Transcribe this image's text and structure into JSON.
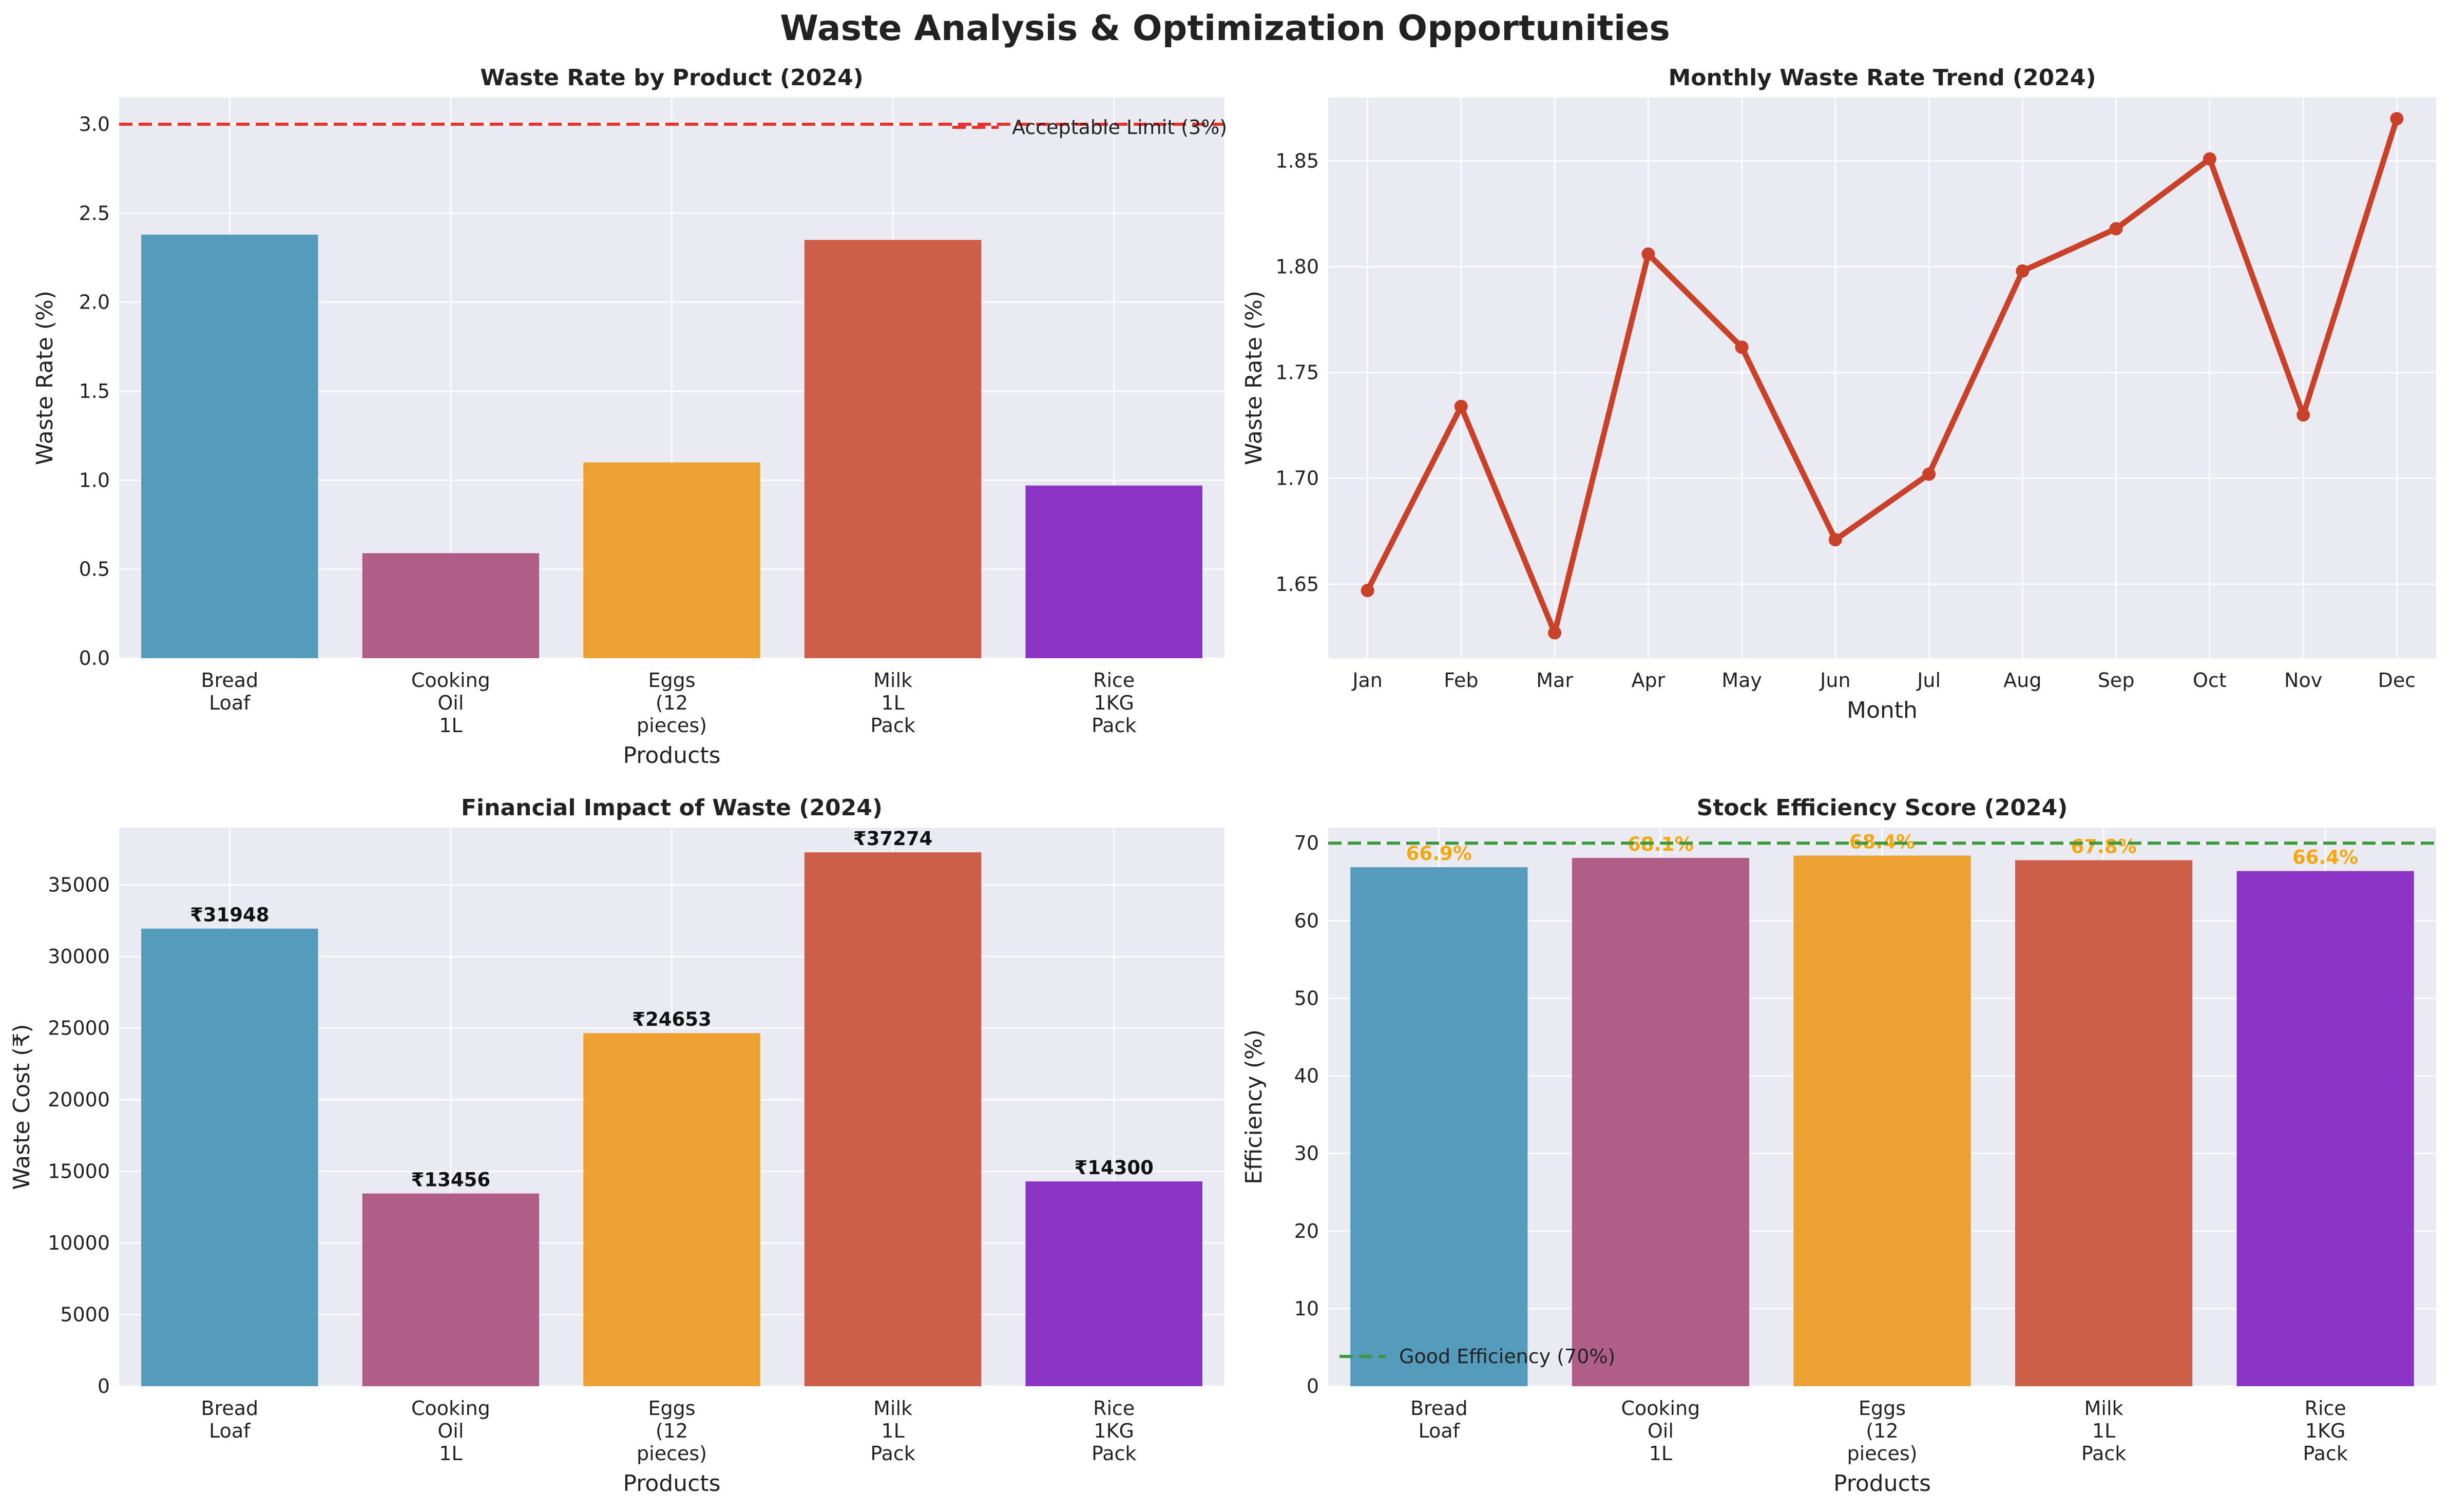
{
  "suptitle": "Waste Analysis & Optimization Opportunities",
  "chart_data": [
    {
      "type": "bar",
      "title": "Waste Rate by Product (2024)",
      "xlabel": "Products",
      "ylabel": "Waste Rate (%)",
      "categories": [
        [
          "Bread",
          "Loaf"
        ],
        [
          "Cooking",
          "Oil",
          "1L"
        ],
        [
          "Eggs",
          "(12",
          "pieces)"
        ],
        [
          "Milk",
          "1L",
          "Pack"
        ],
        [
          "Rice",
          "1KG",
          "Pack"
        ]
      ],
      "values": [
        2.38,
        0.59,
        1.1,
        2.35,
        0.97
      ],
      "colors": [
        "#559bbb",
        "#b05e88",
        "#eea133",
        "#cd5f48",
        "#8a33c4"
      ],
      "ylim": [
        0,
        3.15
      ],
      "yticks": [
        0.0,
        0.5,
        1.0,
        1.5,
        2.0,
        2.5,
        3.0
      ],
      "ytick_labels": [
        "0.0",
        "0.5",
        "1.0",
        "1.5",
        "2.0",
        "2.5",
        "3.0"
      ],
      "reference_line": {
        "value": 3.0,
        "label": "Acceptable Limit (3%)",
        "color": "#e8332d",
        "style": "dashed"
      },
      "legend_position": "upper right",
      "grid": true
    },
    {
      "type": "line",
      "title": "Monthly Waste Rate Trend (2024)",
      "xlabel": "Month",
      "ylabel": "Waste Rate (%)",
      "categories": [
        "Jan",
        "Feb",
        "Mar",
        "Apr",
        "May",
        "Jun",
        "Jul",
        "Aug",
        "Sep",
        "Oct",
        "Nov",
        "Dec"
      ],
      "values": [
        1.647,
        1.734,
        1.627,
        1.806,
        1.762,
        1.671,
        1.702,
        1.798,
        1.818,
        1.851,
        1.73,
        1.87
      ],
      "color": "#c84128",
      "ylim": [
        1.615,
        1.88
      ],
      "yticks": [
        1.65,
        1.7,
        1.75,
        1.8,
        1.85
      ],
      "ytick_labels": [
        "1.65",
        "1.70",
        "1.75",
        "1.80",
        "1.85"
      ],
      "grid": true
    },
    {
      "type": "bar",
      "title": "Financial Impact of Waste (2024)",
      "xlabel": "Products",
      "ylabel": "Waste Cost (₹)",
      "categories": [
        [
          "Bread",
          "Loaf"
        ],
        [
          "Cooking",
          "Oil",
          "1L"
        ],
        [
          "Eggs",
          "(12",
          "pieces)"
        ],
        [
          "Milk",
          "1L",
          "Pack"
        ],
        [
          "Rice",
          "1KG",
          "Pack"
        ]
      ],
      "values": [
        31948,
        13456,
        24653,
        37274,
        14300
      ],
      "data_labels": [
        "₹31948",
        "₹13456",
        "₹24653",
        "₹37274",
        "₹14300"
      ],
      "colors": [
        "#559bbb",
        "#b05e88",
        "#eea133",
        "#cd5f48",
        "#8a33c4"
      ],
      "ylim": [
        0,
        39000
      ],
      "yticks": [
        0,
        5000,
        10000,
        15000,
        20000,
        25000,
        30000,
        35000
      ],
      "ytick_labels": [
        "0",
        "5000",
        "10000",
        "15000",
        "20000",
        "25000",
        "30000",
        "35000"
      ],
      "grid": true
    },
    {
      "type": "bar",
      "title": "Stock Efficiency Score (2024)",
      "xlabel": "Products",
      "ylabel": "Efficiency (%)",
      "categories": [
        [
          "Bread",
          "Loaf"
        ],
        [
          "Cooking",
          "Oil",
          "1L"
        ],
        [
          "Eggs",
          "(12",
          "pieces)"
        ],
        [
          "Milk",
          "1L",
          "Pack"
        ],
        [
          "Rice",
          "1KG",
          "Pack"
        ]
      ],
      "values": [
        66.9,
        68.1,
        68.4,
        67.8,
        66.4
      ],
      "data_labels": [
        "66.9%",
        "68.1%",
        "68.4%",
        "67.8%",
        "66.4%"
      ],
      "data_label_color": "#f5a70f",
      "colors": [
        "#559bbb",
        "#b05e88",
        "#eea133",
        "#cd5f48",
        "#8a33c4"
      ],
      "ylim": [
        0,
        72
      ],
      "yticks": [
        0,
        10,
        20,
        30,
        40,
        50,
        60,
        70
      ],
      "ytick_labels": [
        "0",
        "10",
        "20",
        "30",
        "40",
        "50",
        "60",
        "70"
      ],
      "reference_line": {
        "value": 70,
        "label": "Good Efficiency (70%)",
        "color": "#3a9a3a",
        "style": "dashed"
      },
      "legend_position": "lower left",
      "grid": true
    }
  ]
}
